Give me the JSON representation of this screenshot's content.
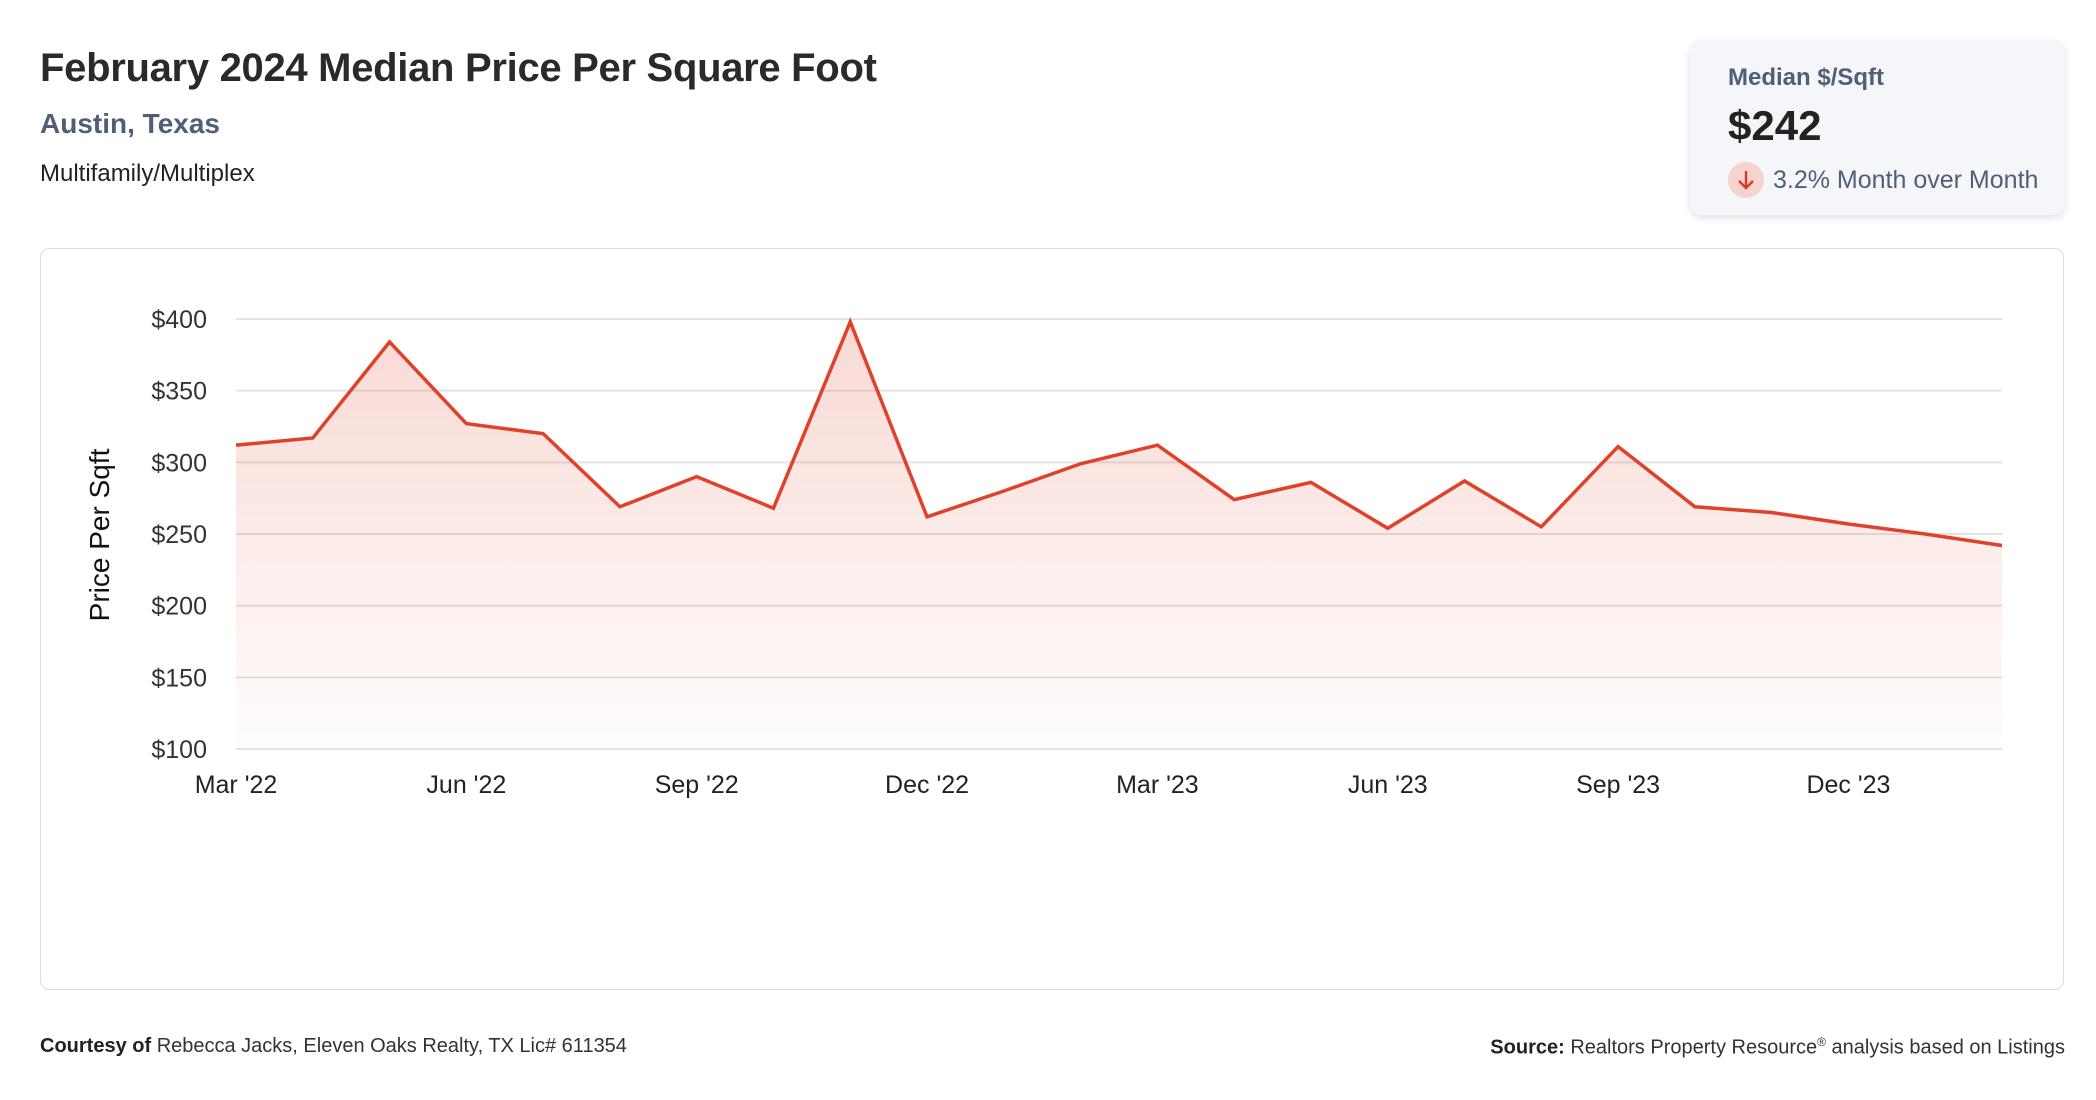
{
  "header": {
    "title": "February 2024 Median Price Per Square Foot",
    "location": "Austin, Texas",
    "property_type": "Multifamily/Multiplex"
  },
  "summary_card": {
    "label": "Median $/Sqft",
    "value": "$242",
    "change_icon": "arrow-down-icon",
    "change_text": "3.2% Month over Month",
    "change_color": "#d63a25"
  },
  "footer": {
    "courtesy_label": "Courtesy of",
    "courtesy_text": "Rebecca Jacks, Eleven Oaks Realty, TX Lic# 611354",
    "source_label": "Source:",
    "source_text": "Realtors Property Resource",
    "source_mark": "®",
    "source_suffix": "analysis based on Listings"
  },
  "chart_data": {
    "type": "area",
    "title": "February 2024 Median Price Per Square Foot",
    "xlabel": "",
    "ylabel": "Price Per Sqft",
    "x": [
      "Mar '22",
      "Apr '22",
      "May '22",
      "Jun '22",
      "Jul '22",
      "Aug '22",
      "Sep '22",
      "Oct '22",
      "Nov '22",
      "Dec '22",
      "Jan '23",
      "Feb '23",
      "Mar '23",
      "Apr '23",
      "May '23",
      "Jun '23",
      "Jul '23",
      "Aug '23",
      "Sep '23",
      "Oct '23",
      "Nov '23",
      "Dec '23",
      "Jan '24",
      "Feb '24"
    ],
    "values": [
      312,
      317,
      384,
      327,
      320,
      269,
      290,
      268,
      398,
      262,
      280,
      299,
      312,
      274,
      286,
      254,
      287,
      255,
      311,
      269,
      265,
      257,
      250,
      242
    ],
    "x_tick_labels": [
      "Mar '22",
      "Jun '22",
      "Sep '22",
      "Dec '22",
      "Mar '23",
      "Jun '23",
      "Sep '23",
      "Dec '23"
    ],
    "y_tick_labels": [
      "$100",
      "$150",
      "$200",
      "$250",
      "$300",
      "$350",
      "$400"
    ],
    "y_ticks": [
      100,
      150,
      200,
      250,
      300,
      350,
      400
    ],
    "ylim": [
      100,
      400
    ],
    "grid": true,
    "line_color": "#e0412a",
    "fill_color": "#e0412a"
  }
}
